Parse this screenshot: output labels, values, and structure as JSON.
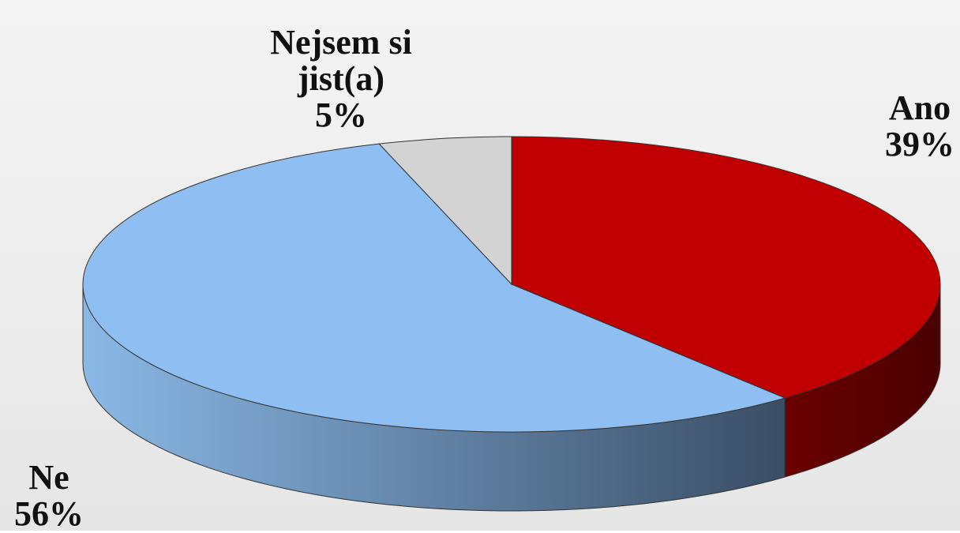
{
  "chart_data": {
    "type": "pie",
    "categories": [
      "Ano",
      "Ne",
      "Nejsem si jist(a)"
    ],
    "values": [
      39,
      56,
      5
    ],
    "value_labels": [
      "39%",
      "56%",
      "5%"
    ],
    "colors": [
      "#c00000",
      "#8fbff2",
      "#d3d3d3"
    ]
  }
}
